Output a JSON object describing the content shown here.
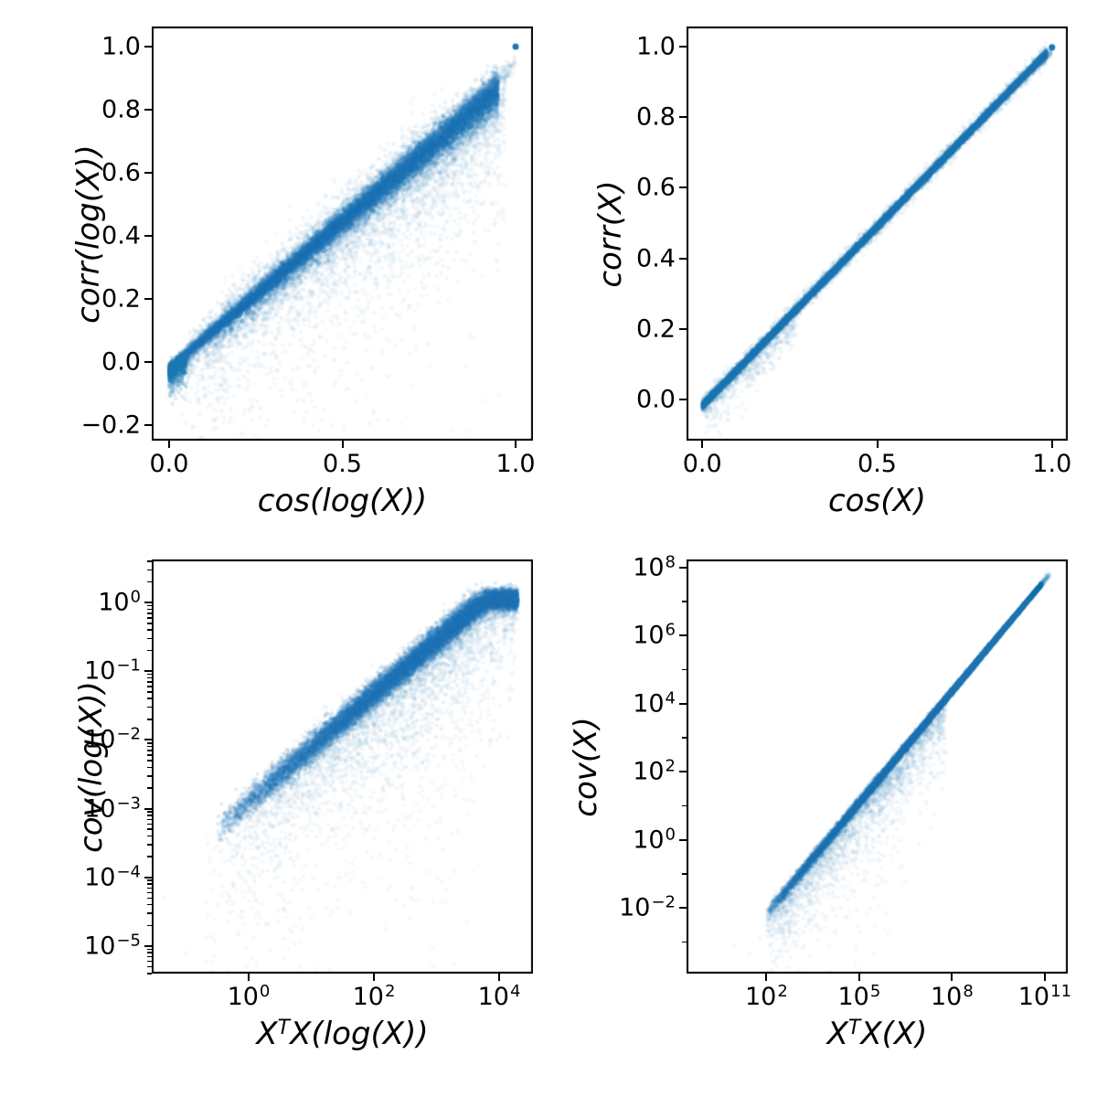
{
  "figure": {
    "background": "#ffffff",
    "point_color": "#1f77b4",
    "panels_order": [
      "top-left",
      "top-right",
      "bottom-left",
      "bottom-right"
    ]
  },
  "chart_data": [
    {
      "id": "corr-log-vs-cos-log",
      "type": "scatter",
      "xlabel": "cos(log(X))",
      "ylabel": "corr(log(X))",
      "xlabel_parts": [
        {
          "t": "cos(log(X))"
        }
      ],
      "xscale": "linear",
      "yscale": "linear",
      "xlim": [
        -0.05,
        1.05
      ],
      "ylim": [
        -0.249,
        1.064
      ],
      "grid": false,
      "legend": null,
      "xticks": [
        {
          "v": 0.0,
          "label": "0.0"
        },
        {
          "v": 0.5,
          "label": "0.5"
        },
        {
          "v": 1.0,
          "label": "1.0"
        }
      ],
      "yticks": [
        {
          "v": 1.0,
          "label": "1.0"
        },
        {
          "v": 0.8,
          "label": "0.8"
        },
        {
          "v": 0.6,
          "label": "0.6"
        },
        {
          "v": 0.4,
          "label": "0.4"
        },
        {
          "v": 0.2,
          "label": "0.2"
        },
        {
          "v": 0.0,
          "label": "0.0"
        },
        {
          "v": -0.2,
          "label": "−0.2"
        }
      ],
      "clusters": [
        {
          "seed": 11,
          "n": 14000,
          "alpha": 0.12,
          "r": 2.2,
          "x": [
            0.0,
            0.95
          ],
          "xpow": 0.85,
          "slope": 0.93,
          "intercept": -0.02,
          "sigma": 0.008,
          "sigma_grow": 0.02
        },
        {
          "seed": 12,
          "n": 4500,
          "alpha": 0.08,
          "r": 2.4,
          "x": [
            0.05,
            0.95
          ],
          "xpow": 0.8,
          "slope": 0.93,
          "intercept": -0.03,
          "sigma": 0.03,
          "sigma_grow": 0.015
        },
        {
          "seed": 13,
          "n": 2600,
          "alpha": 0.05,
          "r": 2.5,
          "x": [
            0.03,
            0.97
          ],
          "xpow": 0.75,
          "slope": 0.9,
          "intercept": -0.02,
          "sigma": 0.02,
          "sigma_grow": 0.02,
          "tail": 0.1,
          "tail_p": 0.85
        },
        {
          "seed": 14,
          "n": 700,
          "alpha": 0.04,
          "r": 2.5,
          "x": [
            0.15,
            0.95
          ],
          "xpow": 0.9,
          "slope": 0.93,
          "intercept": -0.02,
          "sigma": 0.05,
          "tail": 0.2,
          "tail_p": 0.9
        },
        {
          "seed": 15,
          "n": 600,
          "alpha": 0.045,
          "r": 2.4,
          "x": [
            0.15,
            0.8
          ],
          "xpow": 1.0,
          "slope": 0.95,
          "intercept": 0.01,
          "sigma": 0.045
        },
        {
          "seed": 16,
          "n": 1400,
          "alpha": 0.14,
          "r": 2.2,
          "x": [
            0.0,
            0.05
          ],
          "xpow": 1.2,
          "slope": 0.9,
          "intercept": -0.028,
          "sigma": 0.011,
          "tail": 0.02,
          "tail_p": 0.5
        },
        {
          "seed": 17,
          "n": 130,
          "alpha": 0.05,
          "r": 2.4,
          "x": [
            0.93,
            1.0
          ],
          "xpow": 1.0,
          "slope": 1.0,
          "intercept": -0.05,
          "sigma": 0.012
        }
      ],
      "points": [
        {
          "x": 1.0,
          "y": 1.0,
          "alpha": 1.0,
          "r": 3.5
        },
        {
          "x": 0.13,
          "y": -0.185,
          "alpha": 0.05,
          "r": 2.5
        },
        {
          "x": 0.06,
          "y": -0.125,
          "alpha": 0.05,
          "r": 2.5
        },
        {
          "x": 0.35,
          "y": -0.07,
          "alpha": 0.05,
          "r": 2.5
        },
        {
          "x": 0.42,
          "y": -0.033,
          "alpha": 0.05,
          "r": 2.5
        }
      ]
    },
    {
      "id": "corr-vs-cos",
      "type": "scatter",
      "xlabel": "cos(X)",
      "ylabel": "corr(X)",
      "xlabel_parts": [
        {
          "t": "cos(X)"
        }
      ],
      "xscale": "linear",
      "yscale": "linear",
      "xlim": [
        -0.045,
        1.045
      ],
      "ylim": [
        -0.117,
        1.057
      ],
      "grid": false,
      "legend": null,
      "xticks": [
        {
          "v": 0.0,
          "label": "0.0"
        },
        {
          "v": 0.5,
          "label": "0.5"
        },
        {
          "v": 1.0,
          "label": "1.0"
        }
      ],
      "yticks": [
        {
          "v": 1.0,
          "label": "1.0"
        },
        {
          "v": 0.8,
          "label": "0.8"
        },
        {
          "v": 0.6,
          "label": "0.6"
        },
        {
          "v": 0.4,
          "label": "0.4"
        },
        {
          "v": 0.2,
          "label": "0.2"
        },
        {
          "v": 0.0,
          "label": "0.0"
        }
      ],
      "clusters": [
        {
          "seed": 21,
          "n": 16000,
          "alpha": 0.13,
          "r": 2.2,
          "x": [
            0.0,
            0.985
          ],
          "xpow": 1.05,
          "slope": 1.015,
          "intercept": -0.018,
          "sigma": 0.0055
        },
        {
          "seed": 22,
          "n": 2600,
          "alpha": 0.055,
          "r": 2.4,
          "x": [
            0.0,
            0.985
          ],
          "xpow": 1.0,
          "slope": 1.015,
          "intercept": -0.018,
          "sigma": 0.014
        },
        {
          "seed": 23,
          "n": 240,
          "alpha": 0.05,
          "r": 2.4,
          "x": [
            0.13,
            0.27
          ],
          "xpow": 1.0,
          "slope": 1.0,
          "intercept": -0.055,
          "sigma": 0.02,
          "tail": 0.015,
          "tail_p": 0.5
        },
        {
          "seed": 24,
          "n": 280,
          "alpha": 0.055,
          "r": 2.4,
          "x": [
            0.01,
            0.13
          ],
          "xpow": 1.1,
          "slope": 1.0,
          "intercept": -0.025,
          "sigma": 0.01,
          "tail": 0.025,
          "tail_p": 0.7
        },
        {
          "seed": 25,
          "n": 90,
          "alpha": 0.05,
          "r": 2.4,
          "x": [
            0.975,
            1.0
          ],
          "xpow": 1.0,
          "slope": 1.0,
          "intercept": -0.012,
          "sigma": 0.006
        }
      ],
      "points": [
        {
          "x": 1.0,
          "y": 0.998,
          "alpha": 1.0,
          "r": 3.5
        },
        {
          "x": 0.035,
          "y": -0.075,
          "alpha": 0.05,
          "r": 2.5
        },
        {
          "x": 0.012,
          "y": -0.05,
          "alpha": 0.05,
          "r": 2.5
        }
      ]
    },
    {
      "id": "cov-log-vs-xtx-log",
      "type": "scatter",
      "xlabel": "XᵀX(log(X))",
      "ylabel": "cov(log(X))",
      "xlabel_parts": [
        {
          "t": "X"
        },
        {
          "t": "T",
          "sup": true
        },
        {
          "t": "X(log(X))"
        }
      ],
      "xscale": "log",
      "yscale": "log",
      "coords": "log10",
      "xlim": [
        -1.547,
        4.54
      ],
      "ylim": [
        -5.4,
        0.627
      ],
      "grid": false,
      "legend": null,
      "yminor": "logsub",
      "xticks": [
        {
          "v": 0,
          "base": "10",
          "exp": "0"
        },
        {
          "v": 2,
          "base": "10",
          "exp": "2"
        },
        {
          "v": 4,
          "base": "10",
          "exp": "4"
        }
      ],
      "yticks": [
        {
          "v": 0,
          "base": "10",
          "exp": "0"
        },
        {
          "v": -1,
          "base": "10",
          "exp": "−1"
        },
        {
          "v": -2,
          "base": "10",
          "exp": "−2"
        },
        {
          "v": -3,
          "base": "10",
          "exp": "−3"
        },
        {
          "v": -4,
          "base": "10",
          "exp": "−4"
        },
        {
          "v": -5,
          "base": "10",
          "exp": "−5"
        }
      ],
      "clusters": [
        {
          "seed": 31,
          "n": 15000,
          "alpha": 0.12,
          "r": 2.2,
          "x": [
            -0.5,
            4.3
          ],
          "xpow": 0.55,
          "slope": 0.78,
          "intercept": -2.9,
          "sigma": 0.1,
          "vclamp": 0.05,
          "vclamp_sig": 0.07
        },
        {
          "seed": 32,
          "n": 3200,
          "alpha": 0.05,
          "r": 2.4,
          "x": [
            -0.5,
            4.25
          ],
          "xpow": 0.6,
          "slope": 0.78,
          "intercept": -2.92,
          "sigma": 0.16,
          "tail": 0.45,
          "tail_p": 0.9,
          "vclamp": 0.0,
          "vclamp_sig": 0.1
        },
        {
          "seed": 33,
          "n": 800,
          "alpha": 0.04,
          "r": 2.5,
          "x": [
            -0.7,
            3.6
          ],
          "xpow": 0.8,
          "slope": 0.78,
          "intercept": -2.95,
          "sigma": 0.2,
          "tail": 1.1,
          "tail_p": 1.0
        }
      ],
      "points": [
        {
          "x": -1.0,
          "y": -5.1,
          "alpha": 0.05,
          "r": 2.5
        },
        {
          "x": -1.35,
          "y": -4.3,
          "alpha": 0.05,
          "r": 2.5
        },
        {
          "x": 0.35,
          "y": -5.05,
          "alpha": 0.05,
          "r": 2.5
        },
        {
          "x": 1.3,
          "y": -5.35,
          "alpha": 0.05,
          "r": 2.5
        },
        {
          "x": 2.6,
          "y": -4.3,
          "alpha": 0.05,
          "r": 2.5
        },
        {
          "x": 3.1,
          "y": -3.6,
          "alpha": 0.05,
          "r": 2.5
        }
      ]
    },
    {
      "id": "cov-vs-xtx",
      "type": "scatter",
      "xlabel": "XᵀX(X)",
      "ylabel": "cov(X)",
      "xlabel_parts": [
        {
          "t": "X"
        },
        {
          "t": "T",
          "sup": true
        },
        {
          "t": "X(X)"
        }
      ],
      "xscale": "log",
      "yscale": "log",
      "coords": "log10",
      "xlim": [
        -0.584,
        11.742
      ],
      "ylim": [
        -3.932,
        8.241
      ],
      "grid": false,
      "legend": null,
      "yminor": "decades",
      "xticks": [
        {
          "v": 2,
          "base": "10",
          "exp": "2"
        },
        {
          "v": 5,
          "base": "10",
          "exp": "5"
        },
        {
          "v": 8,
          "base": "10",
          "exp": "8"
        },
        {
          "v": 11,
          "base": "10",
          "exp": "11"
        }
      ],
      "yticks": [
        {
          "v": 8,
          "base": "10",
          "exp": "8"
        },
        {
          "v": 6,
          "base": "10",
          "exp": "6"
        },
        {
          "v": 4,
          "base": "10",
          "exp": "4"
        },
        {
          "v": 2,
          "base": "10",
          "exp": "2"
        },
        {
          "v": 0,
          "base": "10",
          "exp": "0"
        },
        {
          "v": -2,
          "base": "10",
          "exp": "−2"
        }
      ],
      "clusters": [
        {
          "seed": 41,
          "n": 16000,
          "alpha": 0.13,
          "r": 2.2,
          "x": [
            2.0,
            10.9
          ],
          "xpow": 0.6,
          "slope": 1.09,
          "intercept": -4.36,
          "sigma": 0.12,
          "sigma_grow": -0.009
        },
        {
          "seed": 42,
          "n": 300,
          "alpha": 0.04,
          "r": 2.3,
          "x": [
            10.55,
            11.15
          ],
          "xpow": 1.0,
          "slope": 1.09,
          "intercept": -4.36,
          "sigma": 0.05
        },
        {
          "seed": 43,
          "n": 2400,
          "alpha": 0.05,
          "r": 2.4,
          "x": [
            2.0,
            7.8
          ],
          "xpow": 0.85,
          "slope": 1.09,
          "intercept": -4.4,
          "sigma": 0.12,
          "tail": 0.5,
          "tail_p": 0.92
        },
        {
          "seed": 44,
          "n": 450,
          "alpha": 0.04,
          "r": 2.5,
          "x": [
            2.0,
            6.5
          ],
          "xpow": 0.9,
          "slope": 1.09,
          "intercept": -4.4,
          "sigma": 0.15,
          "tail": 1.0,
          "tail_p": 1.0
        }
      ],
      "points": [
        {
          "x": 0.96,
          "y": -3.1,
          "alpha": 0.05,
          "r": 2.5
        },
        {
          "x": 1.45,
          "y": -3.35,
          "alpha": 0.05,
          "r": 2.5
        },
        {
          "x": 1.8,
          "y": -2.9,
          "alpha": 0.05,
          "r": 2.5
        },
        {
          "x": 2.6,
          "y": -2.45,
          "alpha": 0.05,
          "r": 2.5
        }
      ]
    }
  ]
}
